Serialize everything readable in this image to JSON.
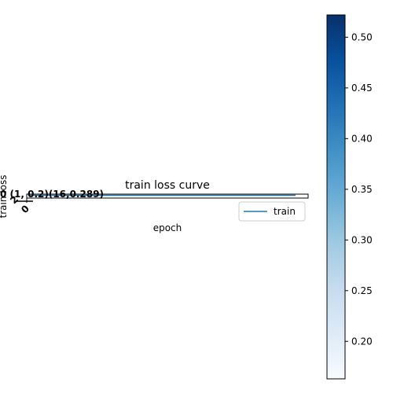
{
  "chart_data": {
    "type": "line",
    "title": "train loss curve",
    "xlabel": "epoch",
    "ylabel": "train loss",
    "series": [
      {
        "name": "train",
        "color": "#1f77b4"
      }
    ],
    "legend": {
      "placement": "right"
    },
    "overlapping_annotation_text": "0 (1, 0.2)(16,0.289)",
    "colorbar": {
      "colormap": "Blues",
      "vmin": 0.163,
      "vmax": 0.522,
      "ticks": [
        0.2,
        0.25,
        0.3,
        0.35,
        0.4,
        0.45,
        0.5
      ],
      "tick_labels": [
        "0.20",
        "0.25",
        "0.30",
        "0.35",
        "0.40",
        "0.45",
        "0.50"
      ]
    },
    "grid": false
  }
}
